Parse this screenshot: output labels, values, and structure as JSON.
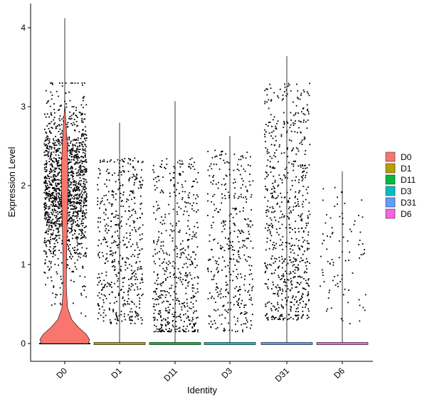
{
  "chart_data": {
    "type": "violin",
    "xlabel": "Identity",
    "ylabel": "Expression Level",
    "ylim": [
      -0.22,
      4.3
    ],
    "yticks": [
      0,
      1,
      2,
      3,
      4
    ],
    "categories": [
      "D0",
      "D1",
      "D11",
      "D3",
      "D31",
      "D6"
    ],
    "colors": [
      "#F8766D",
      "#B79F00",
      "#00BA38",
      "#00BFC4",
      "#619CFF",
      "#F564E3"
    ],
    "max_values": [
      4.12,
      2.8,
      3.07,
      2.63,
      3.64,
      2.18
    ],
    "legend": {
      "position": "right",
      "entries": [
        "D0",
        "D1",
        "D11",
        "D3",
        "D31",
        "D6"
      ]
    },
    "grid": false,
    "jitter_points": true
  }
}
